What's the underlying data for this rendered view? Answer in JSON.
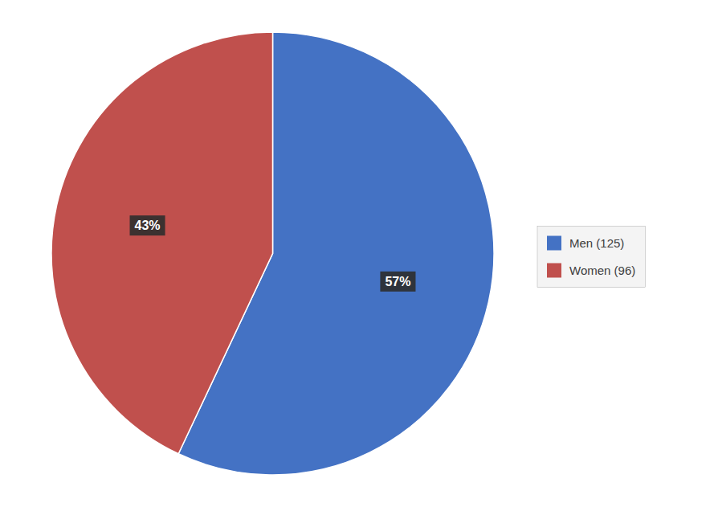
{
  "chart_data": {
    "type": "pie",
    "categories": [
      "Men (125)",
      "Women (96)"
    ],
    "values": [
      57,
      43
    ],
    "value_labels": [
      "57%",
      "43%"
    ],
    "colors": [
      "#4472C4",
      "#C0504D"
    ],
    "data_labels": true,
    "legend": "right"
  }
}
